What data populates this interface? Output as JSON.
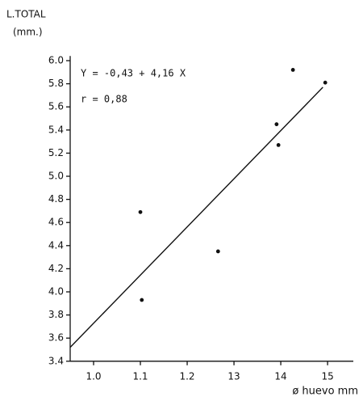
{
  "chart_data": {
    "type": "scatter",
    "y_label": [
      "L.TOTAL",
      "(mm.)"
    ],
    "x_label": "ø huevo mm",
    "annotations": [
      "Y = -0,43 + 4,16 X",
      "r = 0,88"
    ],
    "x": [
      1.1,
      1.103,
      1.266,
      1.391,
      1.395,
      1.426,
      1.495
    ],
    "values": [
      4.69,
      3.93,
      4.35,
      5.45,
      5.27,
      5.92,
      5.81
    ],
    "color": "#111111",
    "fit": {
      "x": [
        0.95,
        1.49
      ],
      "values": [
        3.52,
        5.77
      ]
    },
    "xlim": [
      0.95,
      1.555
    ],
    "ylim": [
      3.4,
      6.04
    ],
    "xticks": [
      {
        "value": 1,
        "label": "1.0"
      },
      1.1,
      1.2,
      {
        "value": 1.3,
        "label": "13"
      },
      {
        "value": 1.4,
        "label": "14"
      },
      {
        "value": 1.5,
        "label": "15"
      }
    ],
    "yticks": [
      {
        "value": 3.4,
        "label": "3.4"
      },
      3.6,
      3.8,
      {
        "value": 4,
        "label": "4.0"
      },
      4.2,
      4.4,
      4.6,
      4.8,
      {
        "value": 5,
        "label": "5.0"
      },
      5.2,
      5.4,
      5.6,
      5.8,
      {
        "value": 6,
        "label": "6.0"
      }
    ],
    "grid": false
  }
}
